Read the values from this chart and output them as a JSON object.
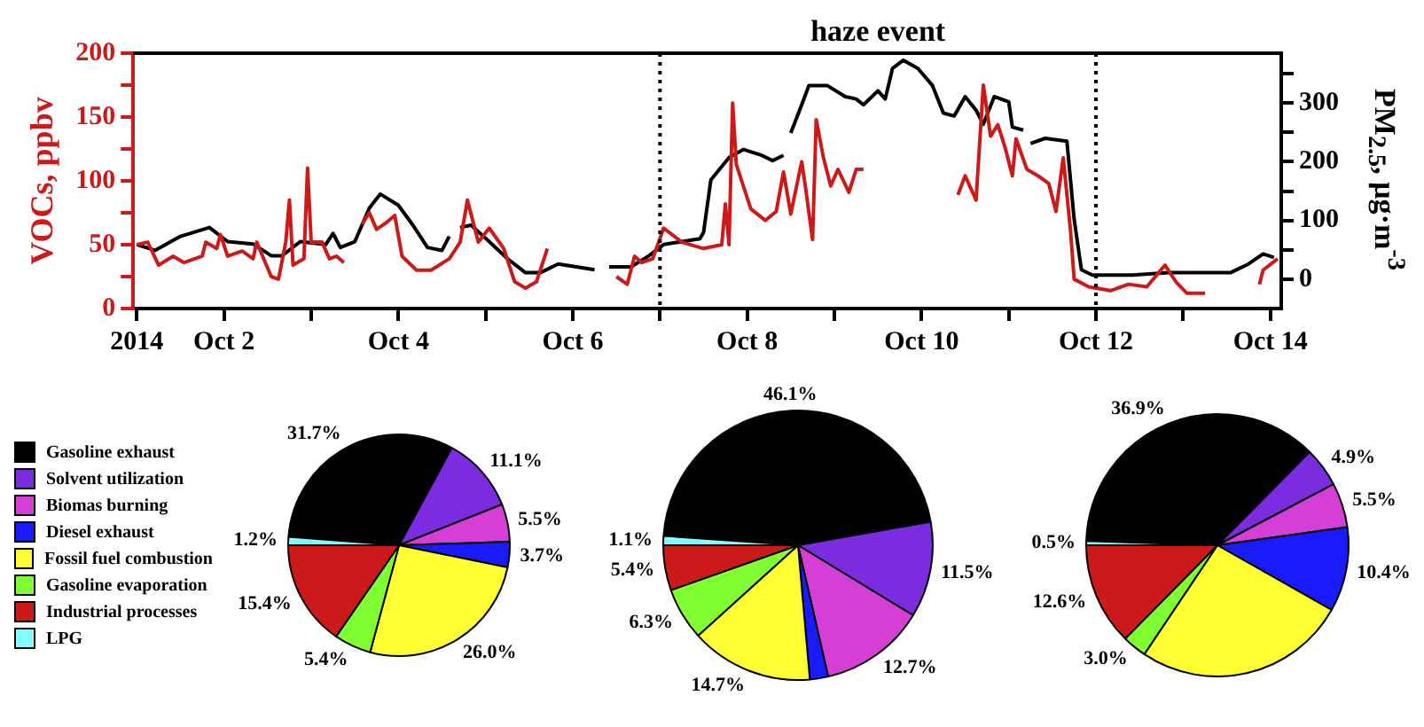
{
  "chart_data": [
    {
      "type": "line",
      "ylabel": "VOCs, ppbv",
      "y2label": "PM$_{2.5}$, μg·m$^{-3}$",
      "annotations": [
        "haze event"
      ],
      "xlim": [
        "2014-09-30T23:00",
        "2014-10-14T03:00"
      ],
      "xticks": [
        {
          "value": "2014-10-01",
          "label": "2014"
        },
        {
          "value": "2014-10-02",
          "label": "Oct 2"
        },
        {
          "value": "2014-10-03",
          "label": null
        },
        {
          "value": "2014-10-04",
          "label": "Oct 4"
        },
        {
          "value": "2014-10-05",
          "label": null
        },
        {
          "value": "2014-10-06",
          "label": "Oct 6"
        },
        {
          "value": "2014-10-07",
          "label": null
        },
        {
          "value": "2014-10-08",
          "label": "Oct 8"
        },
        {
          "value": "2014-10-09",
          "label": null
        },
        {
          "value": "2014-10-10",
          "label": "Oct 10"
        },
        {
          "value": "2014-10-11",
          "label": null
        },
        {
          "value": "2014-10-12",
          "label": "Oct 12"
        },
        {
          "value": "2014-10-13",
          "label": null
        },
        {
          "value": "2014-10-14",
          "label": "Oct 14"
        }
      ],
      "ylim": [
        0,
        200
      ],
      "yticks": [
        0,
        {
          "value": 25,
          "label": null
        },
        50,
        {
          "value": 75,
          "label": null
        },
        100,
        {
          "value": 125,
          "label": null
        },
        150,
        {
          "value": 175,
          "label": null
        },
        200
      ],
      "y2lim": [
        -50,
        385
      ],
      "y2ticks": [
        0,
        {
          "value": 50,
          "label": null
        },
        100,
        {
          "value": 150,
          "label": null
        },
        200,
        {
          "value": 250,
          "label": null
        },
        300,
        {
          "value": 350,
          "label": null
        }
      ],
      "ref_lines": [
        {
          "axis": "x",
          "value": "2014-10-07",
          "line_style": "dotted",
          "color": "#000000"
        },
        {
          "axis": "x",
          "value": "2014-10-12",
          "line_style": "dotted",
          "color": "#000000"
        }
      ],
      "series": [
        {
          "color": "#cc1a1a",
          "axis": "y",
          "x": [
            "2014-10-01T00:00",
            "2014-10-01T03:00",
            "2014-10-01T06:00",
            "2014-10-01T10:00",
            "2014-10-01T13:00",
            "2014-10-01T18:00",
            "2014-10-01T19:00",
            "2014-10-01T22:00",
            "2014-10-01T23:00",
            "2014-10-02T01:00",
            "2014-10-02T05:00",
            "2014-10-02T08:00",
            "2014-10-02T09:00",
            "2014-10-02T13:00",
            "2014-10-02T15:00",
            "2014-10-02T17:00",
            "2014-10-02T18:00",
            "2014-10-02T19:00",
            "2014-10-02T22:00",
            "2014-10-02T23:00",
            "2014-10-03T00:00",
            "2014-10-03T03:00",
            "2014-10-03T05:00",
            "2014-10-03T07:00",
            "2014-10-03T09:00",
            "2014-10-03T10:00",
            "2014-10-03T14:00",
            "2014-10-03T16:00",
            "2014-10-03T18:00",
            "2014-10-03T21:00",
            "2014-10-03T23:00",
            "2014-10-04T01:00",
            "2014-10-04T05:00",
            "2014-10-04T09:00",
            "2014-10-04T14:00",
            "2014-10-04T17:00",
            "2014-10-04T19:00",
            "2014-10-04T22:00",
            "2014-10-05T01:00",
            "2014-10-05T05:00",
            "2014-10-05T08:00",
            "2014-10-05T11:00",
            "2014-10-05T14:00",
            "2014-10-05T17:00",
            "2014-10-05T18:00",
            "2014-10-06T12:00",
            "2014-10-06T15:00",
            "2014-10-06T17:00",
            "2014-10-06T19:00",
            "2014-10-06T22:00",
            "2014-10-07T01:00",
            "2014-10-07T06:00",
            "2014-10-07T12:00",
            "2014-10-07T17:00",
            "2014-10-07T18:00",
            "2014-10-07T19:00",
            "2014-10-07T20:00",
            "2014-10-07T21:00",
            "2014-10-08T01:00",
            "2014-10-08T05:00",
            "2014-10-08T08:00",
            "2014-10-08T10:00",
            "2014-10-08T12:00",
            "2014-10-08T15:00",
            "2014-10-08T16:00",
            "2014-10-08T18:00",
            "2014-10-08T19:00",
            "2014-10-08T21:00",
            "2014-10-08T23:00",
            "2014-10-09T01:00",
            "2014-10-09T04:00",
            "2014-10-09T06:00",
            "2014-10-09T08:00",
            "2014-10-09T09:00",
            "2014-10-10T10:00",
            "2014-10-10T12:00",
            "2014-10-10T15:00",
            "2014-10-10T17:00",
            "2014-10-10T19:00",
            "2014-10-10T21:00",
            "2014-10-10T23:00",
            "2014-10-11T01:00",
            "2014-10-11T02:00",
            "2014-10-11T05:00",
            "2014-10-11T08:00",
            "2014-10-11T11:00",
            "2014-10-11T13:00",
            "2014-10-11T15:00",
            "2014-10-11T17:00",
            "2014-10-11T18:00",
            "2014-10-11T22:00",
            "2014-10-12T04:00",
            "2014-10-12T09:00",
            "2014-10-12T14:00",
            "2014-10-12T19:00",
            "2014-10-12T22:00",
            "2014-10-13T01:00",
            "2014-10-13T06:00",
            "2014-10-13T07:00",
            "2014-10-13T21:00",
            "2014-10-13T22:00",
            "2014-10-14T02:00"
          ],
          "values": [
            50,
            52,
            34,
            41,
            36,
            41,
            52,
            47,
            58,
            41,
            45,
            39,
            52,
            25,
            23,
            52,
            85,
            34,
            39,
            110,
            52,
            52,
            39,
            41,
            36,
            null,
            66,
            75,
            62,
            68,
            73,
            41,
            30,
            30,
            39,
            52,
            85,
            52,
            63,
            47,
            21,
            16,
            21,
            47,
            null,
            25,
            19,
            41,
            36,
            39,
            63,
            52,
            47,
            50,
            82,
            50,
            161,
            113,
            78,
            69,
            76,
            107,
            74,
            115,
            96,
            54,
            148,
            118,
            96,
            109,
            91,
            109,
            109,
            null,
            89,
            104,
            85,
            175,
            135,
            144,
            126,
            104,
            133,
            109,
            104,
            98,
            76,
            118,
            61,
            23,
            17,
            14,
            19,
            17,
            34,
            21,
            12,
            12,
            null,
            19,
            30,
            39
          ]
        },
        {
          "color": "#000000",
          "axis": "y2",
          "x": [
            "2014-10-01T00:00",
            "2014-10-01T05:00",
            "2014-10-01T12:00",
            "2014-10-01T20:00",
            "2014-10-02T01:00",
            "2014-10-02T08:00",
            "2014-10-02T13:00",
            "2014-10-02T16:00",
            "2014-10-02T21:00",
            "2014-10-03T04:00",
            "2014-10-03T06:00",
            "2014-10-03T08:00",
            "2014-10-03T12:00",
            "2014-10-03T16:00",
            "2014-10-03T19:00",
            "2014-10-04T00:00",
            "2014-10-04T04:00",
            "2014-10-04T08:00",
            "2014-10-04T12:00",
            "2014-10-04T14:00",
            "2014-10-04T15:00",
            "2014-10-04T17:00",
            "2014-10-04T20:00",
            "2014-10-05T01:00",
            "2014-10-05T06:00",
            "2014-10-05T11:00",
            "2014-10-05T15:00",
            "2014-10-05T20:00",
            "2014-10-06T01:00",
            "2014-10-06T06:00",
            "2014-10-06T08:00",
            "2014-10-06T10:00",
            "2014-10-06T16:00",
            "2014-10-06T21:00",
            "2014-10-07T01:00",
            "2014-10-07T06:00",
            "2014-10-07T11:00",
            "2014-10-07T12:00",
            "2014-10-07T14:00",
            "2014-10-07T19:00",
            "2014-10-07T23:00",
            "2014-10-08T04:00",
            "2014-10-08T07:00",
            "2014-10-08T10:00",
            "2014-10-08T11:00",
            "2014-10-08T12:00",
            "2014-10-08T15:00",
            "2014-10-08T17:00",
            "2014-10-08T22:00",
            "2014-10-09T03:00",
            "2014-10-09T06:00",
            "2014-10-09T08:00",
            "2014-10-09T12:00",
            "2014-10-09T14:00",
            "2014-10-09T16:00",
            "2014-10-09T19:00",
            "2014-10-09T23:00",
            "2014-10-10T03:00",
            "2014-10-10T06:00",
            "2014-10-10T09:00",
            "2014-10-10T12:00",
            "2014-10-10T15:00",
            "2014-10-10T17:00",
            "2014-10-10T20:00",
            "2014-10-11T00:00",
            "2014-10-11T01:00",
            "2014-10-11T04:00",
            "2014-10-11T05:00",
            "2014-10-11T06:00",
            "2014-10-11T10:00",
            "2014-10-11T16:00",
            "2014-10-11T18:00",
            "2014-10-11T20:00",
            "2014-10-11T23:00",
            "2014-10-12T10:00",
            "2014-10-12T20:00",
            "2014-10-13T06:00",
            "2014-10-13T13:00",
            "2014-10-13T18:00",
            "2014-10-13T22:00",
            "2014-10-14T01:00"
          ],
          "values": [
            59,
            49,
            73,
            88,
            64,
            60,
            40,
            40,
            64,
            59,
            78,
            54,
            64,
            121,
            145,
            126,
            92,
            54,
            49,
            73,
            null,
            88,
            92,
            64,
            35,
            11,
            11,
            26,
            21,
            16,
            null,
            21,
            21,
            40,
            59,
            64,
            69,
            80,
            169,
            207,
            221,
            211,
            202,
            211,
            null,
            249,
            297,
            330,
            330,
            311,
            307,
            297,
            321,
            307,
            359,
            373,
            359,
            330,
            283,
            278,
            311,
            288,
            264,
            311,
            302,
            259,
            254,
            null,
            231,
            240,
            235,
            102,
            16,
            7,
            7,
            11,
            11,
            11,
            26,
            43,
            37
          ]
        }
      ]
    },
    {
      "type": "pie",
      "legend": "left",
      "categories": [
        "Gasoline exhaust",
        "Solvent utilization",
        "Biomas burning",
        "Diesel exhaust",
        "Fossil fuel combustion",
        "Gasoline evaporation",
        "Industrial processes",
        "LPG"
      ],
      "values": [
        31.7,
        11.1,
        5.5,
        3.7,
        26.0,
        5.4,
        15.4,
        1.2
      ],
      "colors": [
        "#000000",
        "#7b2be0",
        "#d63fd6",
        "#1a1aff",
        "#ffff33",
        "#80ff33",
        "#cc1a1a",
        "#80ffff"
      ],
      "value_labels": [
        "31.7%",
        "11.1%",
        "5.5%",
        "3.7%",
        "26.0%",
        "5.4%",
        "15.4%",
        "1.2%"
      ]
    },
    {
      "type": "pie",
      "categories": [
        null,
        null,
        null,
        null,
        null,
        null,
        null,
        null
      ],
      "values": [
        46.1,
        11.5,
        12.7,
        2.2,
        14.7,
        6.3,
        5.4,
        1.1
      ],
      "colors": [
        "#000000",
        "#7b2be0",
        "#d63fd6",
        "#1a1aff",
        "#ffff33",
        "#80ff33",
        "#cc1a1a",
        "#80ffff"
      ],
      "value_labels": [
        "46.1%",
        "11.5%",
        "12.7%",
        null,
        "14.7%",
        "6.3%",
        "5.4%",
        "1.1%"
      ]
    },
    {
      "type": "pie",
      "categories": [
        null,
        null,
        null,
        null,
        null,
        null,
        null,
        null
      ],
      "values": [
        36.9,
        4.9,
        5.5,
        10.4,
        26.2,
        3.0,
        12.6,
        0.5
      ],
      "colors": [
        "#000000",
        "#7b2be0",
        "#d63fd6",
        "#1a1aff",
        "#ffff33",
        "#80ff33",
        "#cc1a1a",
        "#80ffff"
      ],
      "value_labels": [
        "36.9%",
        "4.9%",
        "5.5%",
        "10.4%",
        null,
        "3.0%",
        "12.6%",
        "0.5%"
      ]
    }
  ]
}
